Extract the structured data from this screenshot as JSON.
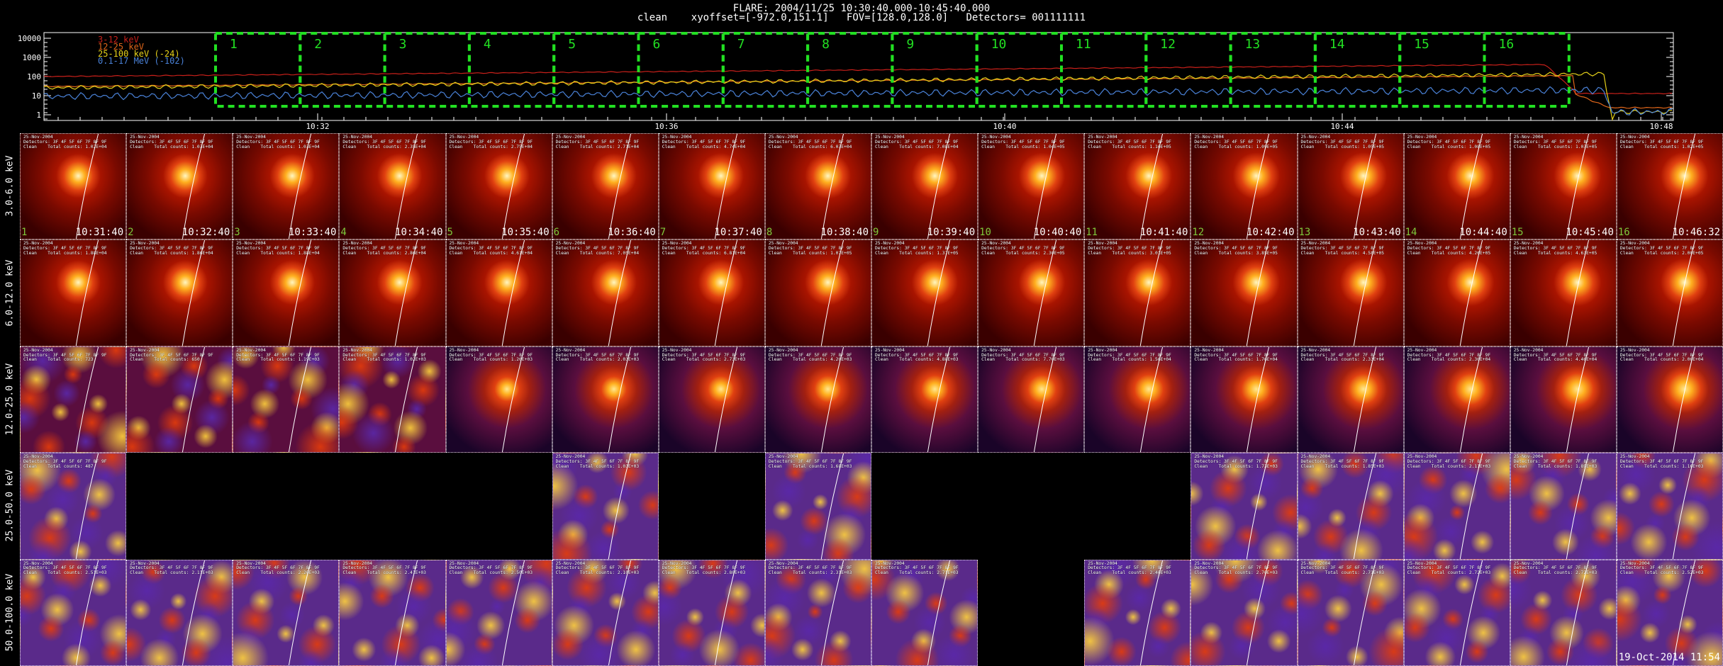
{
  "header": {
    "line1": "FLARE: 2004/11/25 10:30:40.000-10:45:40.000",
    "line2": "clean    xyoffset=[-972.0,151.1]   FOV=[128.0,128.0]   Detectors= 001111111"
  },
  "lightcurve": {
    "y_ticks": [
      "10000",
      "1000",
      "100",
      "10",
      "1"
    ],
    "x_ticks": [
      "10:32",
      "10:36",
      "10:40",
      "10:44",
      "10:48"
    ],
    "legend": [
      {
        "label": "3-12 keV",
        "color": "#c8201a"
      },
      {
        "label": "12-25 keV",
        "color": "#e0661a"
      },
      {
        "label": "25-100 keV (-24)",
        "color": "#e6d21a"
      },
      {
        "label": "0.1-17 MeV (-102)",
        "color": "#4a82d8"
      }
    ],
    "interval_labels": [
      "1",
      "2",
      "3",
      "4",
      "5",
      "6",
      "7",
      "8",
      "9",
      "10",
      "11",
      "12",
      "13",
      "14",
      "15",
      "16"
    ],
    "interval_color": "#22e022"
  },
  "images": {
    "rows": [
      {
        "label": "3.0-6.0 keV",
        "kind": "smooth",
        "present": [
          1,
          1,
          1,
          1,
          1,
          1,
          1,
          1,
          1,
          1,
          1,
          1,
          1,
          1,
          1,
          1
        ],
        "counts": [
          "1.02E+04",
          "1.03E+04",
          "1.03E+04",
          "2.35E+04",
          "2.75E+04",
          "2.71E+04",
          "4.74E+04",
          "6.03E+04",
          "7.08E+04",
          "1.04E+05",
          "1.10E+05",
          "1.09E+05",
          "1.05E+05",
          "1.08E+05",
          "1.03E+05",
          "1.02E+05"
        ]
      },
      {
        "label": "6.0-12.0 keV",
        "kind": "smooth",
        "present": [
          1,
          1,
          1,
          1,
          1,
          1,
          1,
          1,
          1,
          1,
          1,
          1,
          1,
          1,
          1,
          1
        ],
        "counts": [
          "1.88E+04",
          "1.86E+04",
          "1.88E+04",
          "2.86E+04",
          "4.61E+04",
          "7.05E+04",
          "6.81E+04",
          "1.07E+05",
          "1.37E+05",
          "2.30E+05",
          "3.01E+05",
          "3.85E+05",
          "4.58E+05",
          "4.26E+05",
          "4.63E+05",
          "2.00E+05"
        ]
      },
      {
        "label": "12.0-25.0 keV",
        "kind": "mixed",
        "present": [
          1,
          1,
          1,
          1,
          1,
          1,
          1,
          1,
          1,
          1,
          1,
          1,
          1,
          1,
          1,
          1
        ],
        "counts": [
          "723",
          "650",
          "1.19E+03",
          "1.02E+03",
          "1.26E+03",
          "2.03E+03",
          "2.73E+03",
          "4.20E+03",
          "4.88E+03",
          "7.70E+03",
          "1.56E+04",
          "1.76E+04",
          "2.33E+04",
          "2.36E+04",
          "4.46E+04",
          "2.06E+04"
        ]
      },
      {
        "label": "25.0-50.0 keV",
        "kind": "noise",
        "present": [
          1,
          0,
          0,
          0,
          0,
          1,
          0,
          1,
          0,
          0,
          0,
          1,
          1,
          1,
          1,
          1
        ],
        "counts": [
          "487",
          "",
          "",
          "",
          "",
          "1.03E+03",
          "",
          "1.68E+03",
          "",
          "",
          "",
          "1.73E+03",
          "1.85E+03",
          "2.11E+03",
          "1.89E+03",
          "1.16E+03"
        ]
      },
      {
        "label": "50.0-100.0 keV",
        "kind": "noise",
        "present": [
          1,
          1,
          1,
          1,
          1,
          1,
          1,
          1,
          1,
          0,
          1,
          1,
          1,
          1,
          1,
          1
        ],
        "counts": [
          "2.51E+03",
          "2.11E+03",
          "2.20E+03",
          "2.41E+03",
          "2.50E+03",
          "2.10E+03",
          "2.80E+03",
          "2.31E+03",
          "2.71E+03",
          "",
          "2.40E+03",
          "2.70E+03",
          "2.71E+03",
          "2.72E+03",
          "2.72E+03",
          "2.52E+03"
        ]
      }
    ],
    "times": [
      "10:31:40",
      "10:32:40",
      "10:33:40",
      "10:34:40",
      "10:35:40",
      "10:36:40",
      "10:37:40",
      "10:38:40",
      "10:39:40",
      "10:40:40",
      "10:41:40",
      "10:42:40",
      "10:43:40",
      "10:44:40",
      "10:45:40",
      "10:46:32"
    ],
    "title_prefix": "25-Nov-2004",
    "title_detectors": "Detectors: 3F 4F 5F 6F 7F 8F 9F",
    "title_total": "Clean    Total counts:"
  },
  "footer": {
    "stamp": "19-Oct-2014 11:54"
  }
}
